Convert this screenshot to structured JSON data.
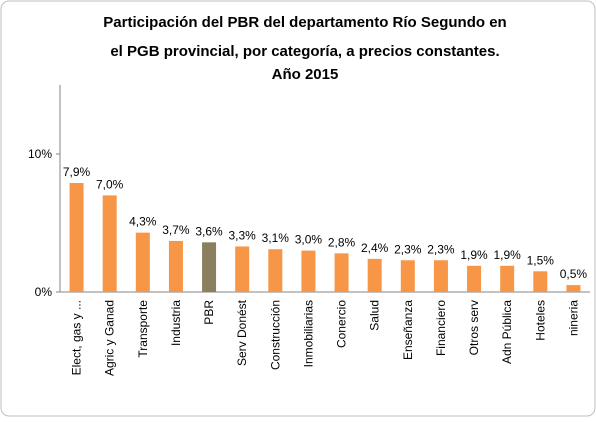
{
  "chart_data": {
    "type": "bar",
    "title": [
      "Participación del PBR del departamento Río Segundo en",
      "el PGB provincial, por categoría, a precios constantes.",
      "Año 2015"
    ],
    "categories": [
      "Elect, gas y ...",
      "Agric y Ganad",
      "Transporte",
      "Industria",
      "PBR",
      "Serv Donést",
      "Construcción",
      "Inmobiliarias",
      "Conercio",
      "Salud",
      "Enseñanza",
      "Financiero",
      "Otros serv",
      "Adn Pública",
      "Hoteles",
      "nineria"
    ],
    "values": [
      7.9,
      7.0,
      4.3,
      3.7,
      3.6,
      3.3,
      3.1,
      3.0,
      2.8,
      2.4,
      2.3,
      2.3,
      1.9,
      1.9,
      1.5,
      0.5
    ],
    "value_labels": [
      "7,9%",
      "7,0%",
      "4,3%",
      "3,7%",
      "3,6%",
      "3,3%",
      "3,1%",
      "3,0%",
      "2,8%",
      "2,4%",
      "2,3%",
      "2,3%",
      "1,9%",
      "1,9%",
      "1,5%",
      "0,5%"
    ],
    "colors": [
      "#f79646",
      "#f79646",
      "#f79646",
      "#f79646",
      "#8a8060",
      "#f79646",
      "#f79646",
      "#f79646",
      "#f79646",
      "#f79646",
      "#f79646",
      "#f79646",
      "#f79646",
      "#f79646",
      "#f79646",
      "#f79646"
    ],
    "ylim": [
      0,
      15
    ],
    "yticks": [
      {
        "value": 0,
        "label": "0%"
      },
      {
        "value": 10,
        "label": "10%"
      }
    ],
    "grid": false
  }
}
